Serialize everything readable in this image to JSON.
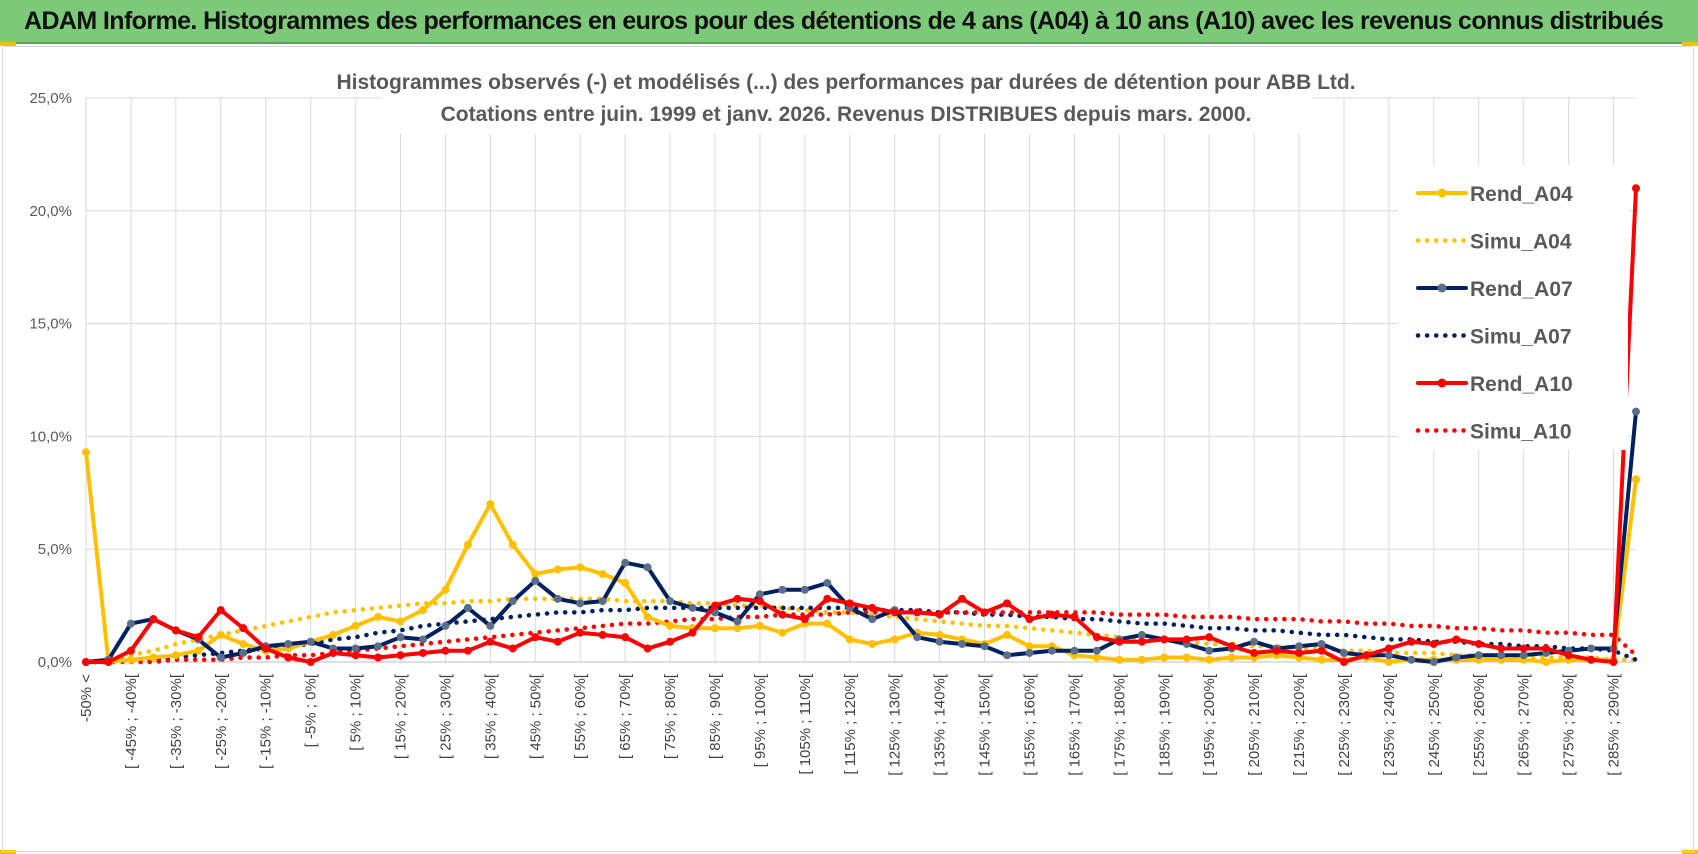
{
  "banner": {
    "title": "ADAM Informe. Histogrammes des performances en euros pour des détentions de 4 ans (A04) à 10 ans (A10) avec les revenus connus distribués"
  },
  "colors": {
    "banner": "#7dc97a",
    "A04": "#ffc000",
    "A07": "#002060",
    "A10": "#ff0000",
    "grid": "#d9d9d9",
    "marker_A07": "#5b6f8a"
  },
  "chart_data": {
    "type": "line",
    "title_lines": [
      "Histogrammes observés (-) et modélisés (...) des performances par durées de détention pour ABB Ltd.",
      "Cotations entre juin. 1999 et janv. 2026. Revenus DISTRIBUES depuis mars. 2000."
    ],
    "ylim": [
      0,
      25
    ],
    "y_ticks": [
      0,
      5,
      10,
      15,
      20,
      25
    ],
    "y_tick_labels": [
      "0,0%",
      "5,0%",
      "10,0%",
      "15,0%",
      "20,0%",
      "25,0%"
    ],
    "x_count": 70,
    "x_tick_labels": [
      "-50% <",
      "[ -45% ; -40%[",
      "[ -35% ; -30%[",
      "[ -25% ; -20%[",
      "[ -15% ; -10%[",
      "[ -5% ; 0%[",
      "[ 5% ; 10%[",
      "[ 15% ; 20%[",
      "[ 25% ; 30%[",
      "[ 35% ; 40%[",
      "[ 45% ; 50%[",
      "[ 55% ; 60%[",
      "[ 65% ; 70%[",
      "[ 75% ; 80%[",
      "[ 85% ; 90%[",
      "[ 95% ; 100%[",
      "[ 105% ; 110%[",
      "[ 115% ; 120%[",
      "[ 125% ; 130%[",
      "[ 135% ; 140%[",
      "[ 145% ; 150%[",
      "[ 155% ; 160%[",
      "[ 165% ; 170%[",
      "[ 175% ; 180%[",
      "[ 185% ; 190%[",
      "[ 195% ; 200%[",
      "[ 205% ; 210%[",
      "[ 215% ; 220%[",
      "[ 225% ; 230%[",
      "[ 235% ; 240%[",
      "[ 245% ; 250%[",
      "[ 255% ; 260%[",
      "[ 265% ; 270%[",
      "[ 275% ; 280%[",
      "[ 285% ; 290%["
    ],
    "x_tick_indices": [
      0,
      2,
      4,
      6,
      8,
      10,
      12,
      14,
      16,
      18,
      20,
      22,
      24,
      26,
      28,
      30,
      32,
      34,
      36,
      38,
      40,
      42,
      44,
      46,
      48,
      50,
      52,
      54,
      56,
      58,
      60,
      62,
      64,
      66,
      68
    ],
    "legend_position": "right",
    "series": [
      {
        "name": "Rend_A04",
        "color": "#ffc000",
        "style": "solid",
        "marker": true,
        "values": [
          9.3,
          0.0,
          0.1,
          0.2,
          0.3,
          0.5,
          1.2,
          0.8,
          0.5,
          0.6,
          0.9,
          1.2,
          1.6,
          2.0,
          1.8,
          2.3,
          3.2,
          5.2,
          7.0,
          5.2,
          3.9,
          4.1,
          4.2,
          3.9,
          3.5,
          2.0,
          1.6,
          1.5,
          1.5,
          1.5,
          1.6,
          1.3,
          1.7,
          1.7,
          1.0,
          0.8,
          1.0,
          1.3,
          1.2,
          1.0,
          0.8,
          1.2,
          0.7,
          0.7,
          0.3,
          0.2,
          0.1,
          0.1,
          0.2,
          0.2,
          0.1,
          0.2,
          0.2,
          0.3,
          0.2,
          0.1,
          0.1,
          0.2,
          0.0,
          0.1,
          0.1,
          0.1,
          0.1,
          0.1,
          0.1,
          0.0,
          0.1,
          0.1,
          0.1,
          8.1
        ]
      },
      {
        "name": "Simu_A04",
        "color": "#ffc000",
        "style": "dotted",
        "marker": false,
        "values": [
          0.0,
          0.1,
          0.3,
          0.5,
          0.8,
          1.0,
          1.2,
          1.4,
          1.6,
          1.8,
          2.0,
          2.2,
          2.3,
          2.4,
          2.5,
          2.6,
          2.6,
          2.7,
          2.7,
          2.8,
          2.8,
          2.8,
          2.8,
          2.8,
          2.7,
          2.7,
          2.7,
          2.6,
          2.6,
          2.5,
          2.5,
          2.4,
          2.3,
          2.2,
          2.2,
          2.1,
          2.0,
          1.9,
          1.8,
          1.7,
          1.6,
          1.6,
          1.5,
          1.4,
          1.3,
          1.2,
          1.1,
          1.0,
          1.0,
          0.9,
          0.8,
          0.8,
          0.7,
          0.7,
          0.6,
          0.6,
          0.5,
          0.5,
          0.4,
          0.4,
          0.4,
          0.3,
          0.3,
          0.3,
          0.2,
          0.2,
          0.2,
          0.2,
          0.1,
          0.1
        ]
      },
      {
        "name": "Rend_A07",
        "color": "#002060",
        "style": "solid",
        "marker": true,
        "values": [
          0.0,
          0.1,
          1.7,
          1.9,
          1.4,
          1.0,
          0.2,
          0.4,
          0.7,
          0.8,
          0.9,
          0.6,
          0.6,
          0.7,
          1.1,
          1.0,
          1.6,
          2.4,
          1.6,
          2.7,
          3.6,
          2.8,
          2.6,
          2.7,
          4.4,
          4.2,
          2.7,
          2.4,
          2.2,
          1.8,
          3.0,
          3.2,
          3.2,
          3.5,
          2.4,
          1.9,
          2.3,
          1.1,
          0.9,
          0.8,
          0.7,
          0.3,
          0.4,
          0.5,
          0.5,
          0.5,
          1.0,
          1.2,
          1.0,
          0.8,
          0.5,
          0.6,
          0.9,
          0.6,
          0.7,
          0.8,
          0.4,
          0.3,
          0.3,
          0.1,
          0.0,
          0.2,
          0.3,
          0.3,
          0.3,
          0.4,
          0.5,
          0.6,
          0.6,
          11.1
        ]
      },
      {
        "name": "Simu_A07",
        "color": "#002060",
        "style": "dotted",
        "marker": false,
        "values": [
          0.0,
          0.0,
          0.1,
          0.1,
          0.2,
          0.3,
          0.4,
          0.5,
          0.6,
          0.7,
          0.8,
          1.0,
          1.1,
          1.3,
          1.4,
          1.6,
          1.7,
          1.8,
          1.9,
          2.0,
          2.1,
          2.2,
          2.2,
          2.3,
          2.3,
          2.4,
          2.4,
          2.4,
          2.4,
          2.4,
          2.4,
          2.4,
          2.4,
          2.4,
          2.4,
          2.3,
          2.3,
          2.3,
          2.2,
          2.2,
          2.1,
          2.1,
          2.0,
          2.0,
          1.9,
          1.9,
          1.8,
          1.7,
          1.7,
          1.6,
          1.5,
          1.5,
          1.4,
          1.4,
          1.3,
          1.2,
          1.2,
          1.1,
          1.0,
          1.0,
          0.9,
          0.9,
          0.8,
          0.8,
          0.7,
          0.7,
          0.6,
          0.6,
          0.5,
          0.1
        ]
      },
      {
        "name": "Rend_A10",
        "color": "#ff0000",
        "style": "solid",
        "marker": true,
        "values": [
          0.0,
          0.0,
          0.5,
          1.9,
          1.4,
          1.1,
          2.3,
          1.5,
          0.6,
          0.2,
          0.0,
          0.4,
          0.3,
          0.2,
          0.3,
          0.4,
          0.5,
          0.5,
          0.9,
          0.6,
          1.1,
          0.9,
          1.3,
          1.2,
          1.1,
          0.6,
          0.9,
          1.3,
          2.5,
          2.8,
          2.7,
          2.1,
          1.9,
          2.8,
          2.6,
          2.4,
          2.2,
          2.2,
          2.1,
          2.8,
          2.2,
          2.6,
          1.9,
          2.1,
          2.0,
          1.1,
          0.9,
          0.9,
          1.0,
          1.0,
          1.1,
          0.7,
          0.4,
          0.5,
          0.4,
          0.5,
          0.0,
          0.3,
          0.6,
          0.9,
          0.8,
          1.0,
          0.8,
          0.6,
          0.6,
          0.6,
          0.3,
          0.1,
          0.0,
          21.0
        ]
      },
      {
        "name": "Simu_A10",
        "color": "#ff0000",
        "style": "dotted",
        "marker": false,
        "values": [
          0.0,
          0.0,
          0.0,
          0.0,
          0.1,
          0.1,
          0.1,
          0.2,
          0.2,
          0.3,
          0.3,
          0.4,
          0.5,
          0.6,
          0.7,
          0.8,
          0.9,
          1.0,
          1.1,
          1.2,
          1.3,
          1.4,
          1.5,
          1.6,
          1.7,
          1.7,
          1.8,
          1.9,
          1.9,
          2.0,
          2.0,
          2.1,
          2.1,
          2.1,
          2.2,
          2.2,
          2.2,
          2.2,
          2.2,
          2.2,
          2.2,
          2.2,
          2.2,
          2.2,
          2.2,
          2.2,
          2.1,
          2.1,
          2.1,
          2.0,
          2.0,
          2.0,
          1.9,
          1.9,
          1.9,
          1.8,
          1.8,
          1.7,
          1.7,
          1.6,
          1.6,
          1.5,
          1.5,
          1.4,
          1.4,
          1.3,
          1.3,
          1.2,
          1.2,
          0.3
        ]
      }
    ]
  }
}
